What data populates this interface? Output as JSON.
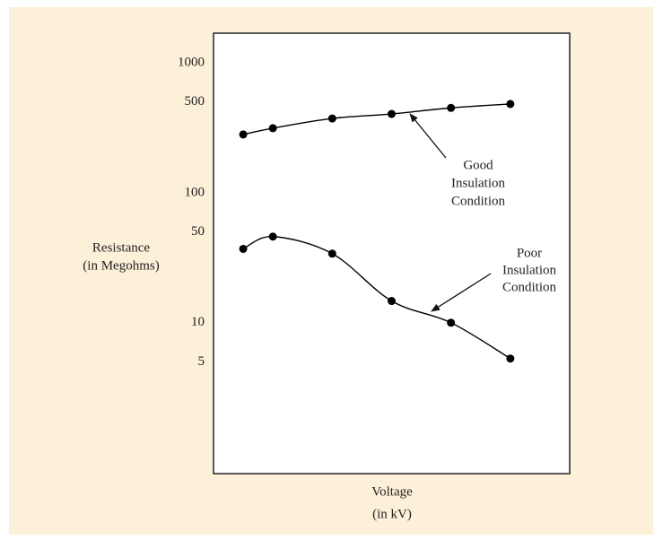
{
  "chart_data": {
    "type": "line",
    "ylabel": [
      "Resistance",
      "(in Megohms)"
    ],
    "xlabel": [
      "Voltage",
      "(in kV)"
    ],
    "x": [
      1,
      2,
      4,
      6,
      8,
      10
    ],
    "xlim": [
      0,
      12
    ],
    "ylim": [
      0.69,
      1690
    ],
    "log_y": true,
    "yticks": [
      5,
      10,
      50,
      100,
      500,
      1000
    ],
    "grid": false,
    "series": [
      {
        "color": "#000000",
        "values": [
          281,
          314,
          373,
          404,
          450,
          482
        ]
      },
      {
        "color": "#000000",
        "values": [
          37,
          46,
          34,
          14.7,
          10,
          5.3
        ]
      }
    ],
    "annotations": [
      {
        "text": [
          "Good",
          "Insulation",
          "Condition"
        ]
      },
      {
        "text": [
          "Poor",
          "Insulation",
          "Condition"
        ]
      }
    ]
  }
}
